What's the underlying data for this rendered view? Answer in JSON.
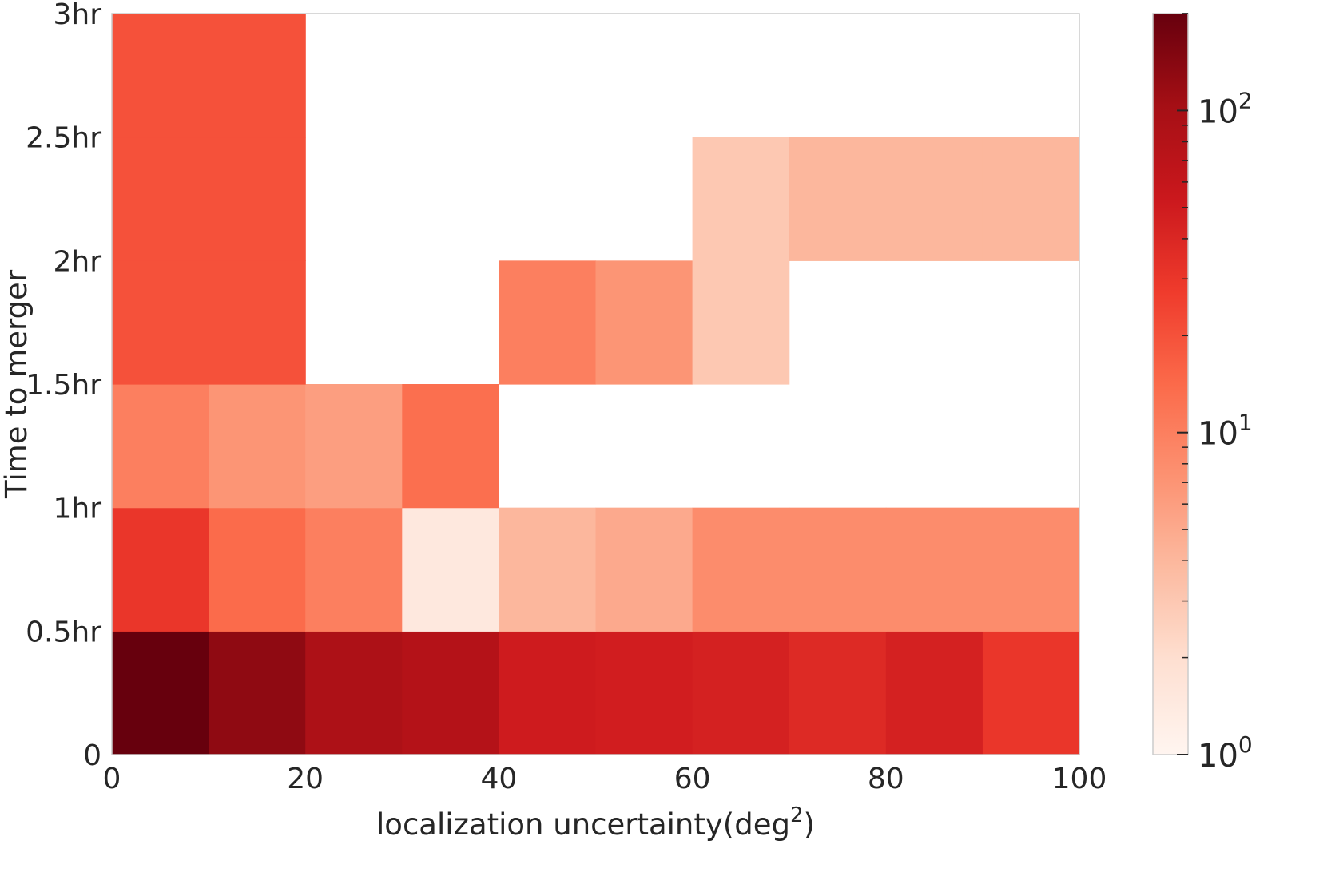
{
  "chart_data": {
    "type": "heatmap",
    "xlabel": "localization uncertainty(deg",
    "xlabel_superscript": "2",
    "xlabel_suffix": ")",
    "ylabel": "Time to merger",
    "xlim": [
      0,
      100
    ],
    "ylim": [
      0,
      3
    ],
    "x_ticks": [
      {
        "value": 0,
        "label": "0"
      },
      {
        "value": 20,
        "label": "20"
      },
      {
        "value": 40,
        "label": "40"
      },
      {
        "value": 60,
        "label": "60"
      },
      {
        "value": 80,
        "label": "80"
      },
      {
        "value": 100,
        "label": "100"
      }
    ],
    "y_ticks": [
      {
        "value": 0,
        "label": "0"
      },
      {
        "value": 0.5,
        "label": "0.5hr"
      },
      {
        "value": 1,
        "label": "1hr"
      },
      {
        "value": 1.5,
        "label": "1.5hr"
      },
      {
        "value": 2,
        "label": "2hr"
      },
      {
        "value": 2.5,
        "label": "2.5hr"
      },
      {
        "value": 3,
        "label": "3hr"
      }
    ],
    "x_bin_edges": [
      0,
      10,
      20,
      30,
      40,
      50,
      60,
      70,
      80,
      90,
      100
    ],
    "y_bin_edges": [
      0,
      0.5,
      1,
      1.5,
      2,
      2.5,
      3
    ],
    "colormap": "Reds",
    "color_scale": "log",
    "color_range": [
      1,
      200
    ],
    "colormap_stops": [
      "#fff5f0",
      "#fee0d2",
      "#fcbba1",
      "#fc9272",
      "#fb6a4a",
      "#ef3b2c",
      "#cb181d",
      "#a50f15",
      "#67000d"
    ],
    "colorbar_ticks": [
      {
        "value": 1,
        "base": "10",
        "exp": "0"
      },
      {
        "value": 10,
        "base": "10",
        "exp": "1"
      },
      {
        "value": 100,
        "base": "10",
        "exp": "2"
      }
    ],
    "counts": [
      [
        200,
        130,
        90,
        80,
        50,
        48,
        45,
        38,
        45,
        30
      ],
      [
        30,
        14,
        10,
        1.5,
        4,
        5,
        8,
        8,
        8,
        8
      ],
      [
        10,
        7,
        6,
        13,
        null,
        null,
        null,
        null,
        null,
        null
      ],
      [
        20,
        20,
        null,
        null,
        10,
        7,
        3,
        null,
        null,
        null
      ],
      [
        20,
        20,
        null,
        null,
        null,
        null,
        3,
        4,
        4,
        4
      ],
      [
        20,
        20,
        null,
        null,
        null,
        null,
        null,
        null,
        null,
        null
      ]
    ]
  }
}
